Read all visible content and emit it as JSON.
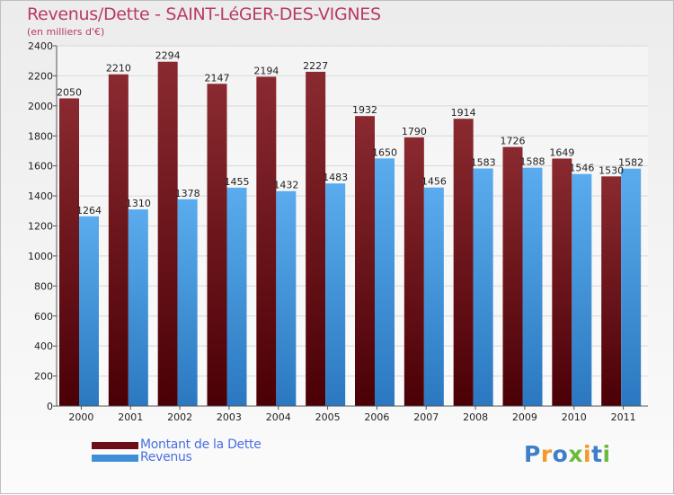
{
  "header": {
    "title": "Revenus/Dette - SAINT-LéGER-DES-VIGNES",
    "subtitle": "(en milliers d'€)"
  },
  "legend": {
    "items": [
      {
        "label": "Montant de la Dette",
        "color": "#6b0e16"
      },
      {
        "label": "Revenus",
        "color": "#3f8fd8"
      }
    ]
  },
  "logo": {
    "letters": [
      {
        "ch": "P",
        "color": "#3d7fc8"
      },
      {
        "ch": "r",
        "color": "#f39a2b"
      },
      {
        "ch": "o",
        "color": "#3d7fc8"
      },
      {
        "ch": "x",
        "color": "#6cbb3c"
      },
      {
        "ch": "i",
        "color": "#f39a2b"
      },
      {
        "ch": "t",
        "color": "#3d7fc8"
      },
      {
        "ch": "i",
        "color": "#6cbb3c"
      }
    ]
  },
  "chart_data": {
    "type": "bar",
    "title": "Revenus/Dette - SAINT-LéGER-DES-VIGNES",
    "ylabel": "(en milliers d'€)",
    "xlabel": "",
    "categories": [
      "2000",
      "2001",
      "2002",
      "2003",
      "2004",
      "2005",
      "2006",
      "2007",
      "2008",
      "2009",
      "2010",
      "2011"
    ],
    "series": [
      {
        "name": "Montant de la Dette",
        "color": "#6b0e16",
        "values": [
          2050,
          2210,
          2294,
          2147,
          2194,
          2227,
          1932,
          1790,
          1914,
          1726,
          1649,
          1530
        ]
      },
      {
        "name": "Revenus",
        "color": "#3f8fd8",
        "values": [
          1264,
          1310,
          1378,
          1455,
          1432,
          1483,
          1650,
          1456,
          1583,
          1588,
          1546,
          1582
        ]
      }
    ],
    "ylim": [
      0,
      2400
    ],
    "yticks": [
      0,
      200,
      400,
      600,
      800,
      1000,
      1200,
      1400,
      1600,
      1800,
      2000,
      2200,
      2400
    ],
    "grid": true,
    "legend_position": "bottom-left"
  }
}
